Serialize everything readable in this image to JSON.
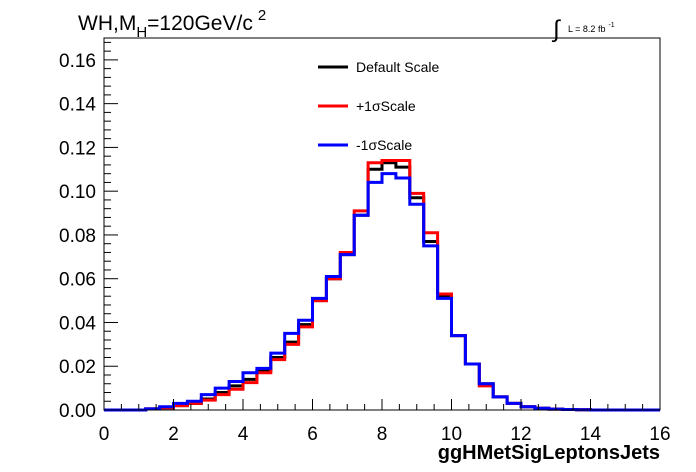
{
  "chart_data": {
    "type": "step-histogram",
    "title": {
      "prefix": "WH,M",
      "subscript": "H",
      "value": "=120GeV/c",
      "superscript": "2"
    },
    "luminosity": {
      "symbol": "∫",
      "text": "L = 8.2 fb",
      "superscript": "-1"
    },
    "xlabel": "ggHMetSigLeptonsJets",
    "ylabel": "",
    "xlim": [
      0,
      16
    ],
    "ylim": [
      0,
      0.17
    ],
    "x_ticks": [
      {
        "value": 0,
        "label": "0"
      },
      {
        "value": 2,
        "label": "2"
      },
      {
        "value": 4,
        "label": "4"
      },
      {
        "value": 6,
        "label": "6"
      },
      {
        "value": 8,
        "label": "8"
      },
      {
        "value": 10,
        "label": "10"
      },
      {
        "value": 12,
        "label": "12"
      },
      {
        "value": 14,
        "label": "14"
      },
      {
        "value": 16,
        "label": "16"
      }
    ],
    "y_ticks": [
      {
        "value": 0,
        "label": "0.00"
      },
      {
        "value": 0.02,
        "label": "0.02"
      },
      {
        "value": 0.04,
        "label": "0.04"
      },
      {
        "value": 0.06,
        "label": "0.06"
      },
      {
        "value": 0.08,
        "label": "0.08"
      },
      {
        "value": 0.1,
        "label": "0.10"
      },
      {
        "value": 0.12,
        "label": "0.12"
      },
      {
        "value": 0.14,
        "label": "0.14"
      },
      {
        "value": 0.16,
        "label": "0.16"
      }
    ],
    "bin_edges": [
      0.0,
      0.4,
      0.8,
      1.2,
      1.6,
      2.0,
      2.4,
      2.8,
      3.2,
      3.6,
      4.0,
      4.4,
      4.8,
      5.2,
      5.6,
      6.0,
      6.4,
      6.8,
      7.2,
      7.6,
      8.0,
      8.4,
      8.8,
      9.2,
      9.6,
      10.0,
      10.4,
      10.8,
      11.2,
      11.6,
      12.0,
      12.4,
      12.8,
      13.2,
      13.6,
      14.0,
      14.4,
      14.8,
      15.2,
      15.6,
      16.0
    ],
    "series": [
      {
        "name": "Default Scale",
        "color": "#000000",
        "values": [
          0.0,
          0.0,
          0.0,
          0.0005,
          0.001,
          0.002,
          0.003,
          0.005,
          0.008,
          0.011,
          0.014,
          0.018,
          0.024,
          0.031,
          0.039,
          0.05,
          0.06,
          0.071,
          0.089,
          0.11,
          0.113,
          0.111,
          0.097,
          0.077,
          0.052,
          0.034,
          0.021,
          0.012,
          0.006,
          0.003,
          0.0015,
          0.0008,
          0.0004,
          0.0002,
          0.0001,
          0.0,
          0.0,
          0.0,
          0.0,
          0.0
        ]
      },
      {
        "name": "+1σScale",
        "color": "#ff0000",
        "values": [
          0.0,
          0.0,
          0.0,
          0.0005,
          0.001,
          0.002,
          0.003,
          0.0045,
          0.007,
          0.0095,
          0.0125,
          0.017,
          0.023,
          0.03,
          0.038,
          0.05,
          0.06,
          0.072,
          0.091,
          0.113,
          0.114,
          0.114,
          0.099,
          0.081,
          0.053,
          0.034,
          0.021,
          0.011,
          0.006,
          0.003,
          0.0015,
          0.0008,
          0.0004,
          0.0002,
          0.0001,
          0.0,
          0.0,
          0.0,
          0.0,
          0.0
        ]
      },
      {
        "name": "-1σScale",
        "color": "#0000ff",
        "values": [
          0.0,
          0.0,
          0.0,
          0.0005,
          0.0015,
          0.003,
          0.004,
          0.007,
          0.01,
          0.013,
          0.017,
          0.019,
          0.026,
          0.035,
          0.041,
          0.051,
          0.061,
          0.071,
          0.089,
          0.104,
          0.108,
          0.106,
          0.094,
          0.075,
          0.051,
          0.034,
          0.021,
          0.012,
          0.006,
          0.003,
          0.0015,
          0.0008,
          0.0004,
          0.0002,
          0.0001,
          0.0,
          0.0,
          0.0,
          0.0,
          0.0
        ]
      }
    ],
    "legend": {
      "placement": "top-center",
      "items": [
        "Default Scale",
        "+1σScale",
        "-1σScale"
      ]
    },
    "grid": false
  }
}
